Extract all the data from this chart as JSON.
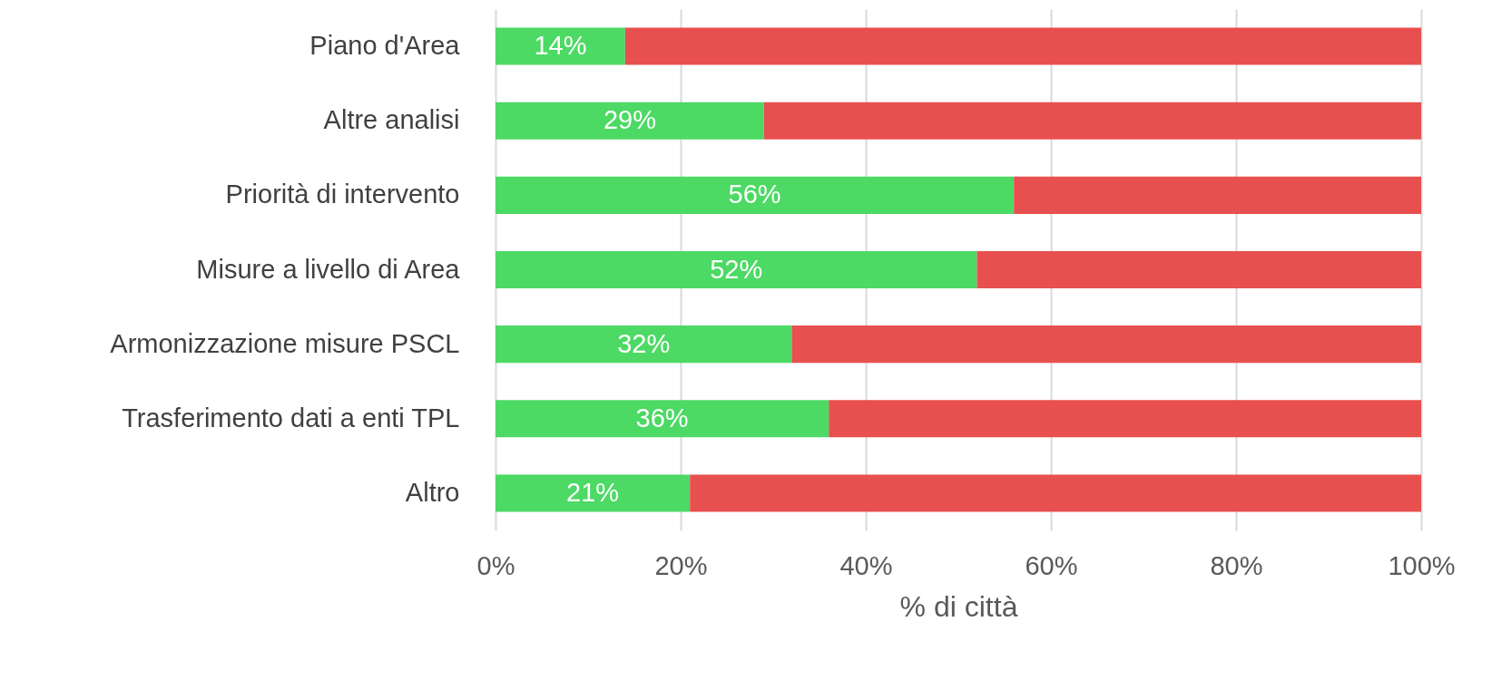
{
  "chart_data": {
    "type": "bar",
    "orientation": "horizontal",
    "stacked": true,
    "xlabel": "% di città",
    "categories": [
      "Piano d'Area",
      "Altre analisi",
      "Priorità di intervento",
      "Misure a livello di Area",
      "Armonizzazione misure PSCL",
      "Trasferimento dati a enti TPL",
      "Altro"
    ],
    "series": [
      {
        "color": "#4cd964",
        "values": [
          14,
          29,
          56,
          52,
          32,
          36,
          21
        ],
        "value_labels": [
          "14%",
          "29%",
          "56%",
          "52%",
          "32%",
          "36%",
          "21%"
        ]
      },
      {
        "color": "#e84f4f",
        "values": [
          86,
          71,
          44,
          48,
          68,
          64,
          79
        ]
      }
    ],
    "xlim": [
      0,
      100
    ],
    "xticks": [
      {
        "value": 0,
        "label": "0%"
      },
      {
        "value": 20,
        "label": "20%"
      },
      {
        "value": 40,
        "label": "40%"
      },
      {
        "value": 60,
        "label": "60%"
      },
      {
        "value": 80,
        "label": "80%"
      },
      {
        "value": 100,
        "label": "100%"
      }
    ],
    "grid": "x",
    "legend": false
  }
}
